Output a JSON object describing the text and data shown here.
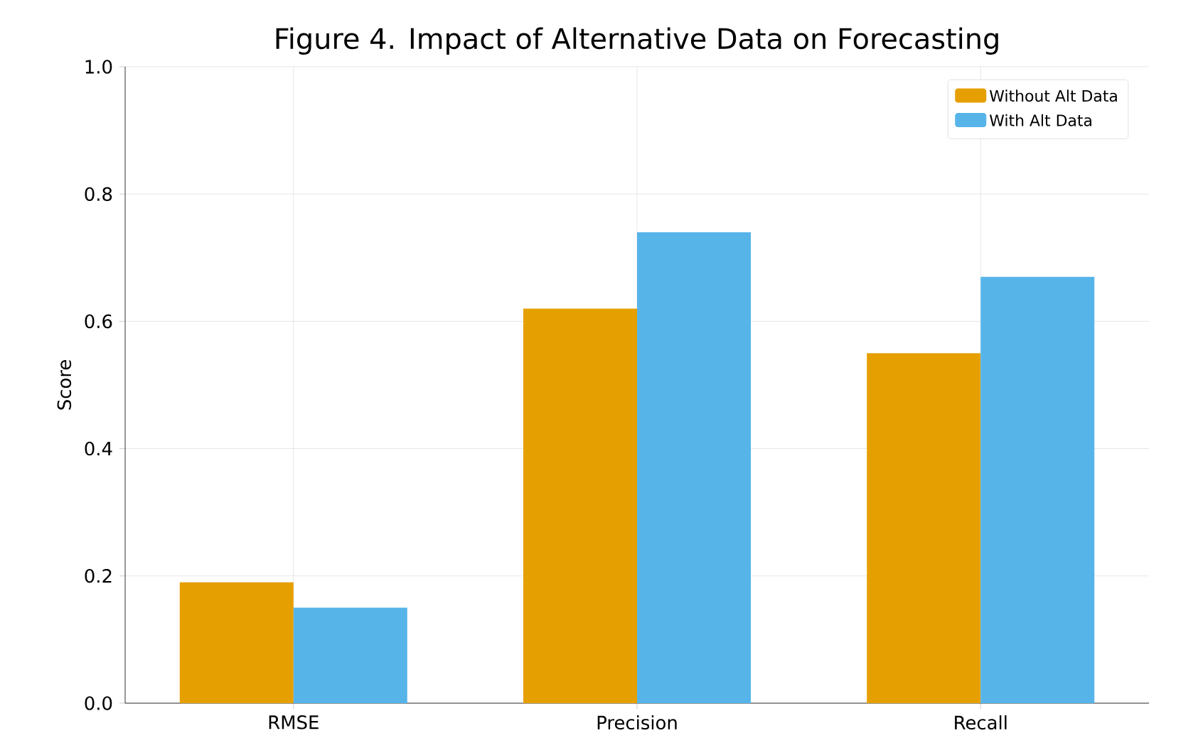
{
  "chart_data": {
    "type": "bar",
    "title": "Figure 4. Impact of Alternative Data on Forecasting",
    "ylabel": "Score",
    "categories": [
      "RMSE",
      "Precision",
      "Recall"
    ],
    "series": [
      {
        "name": "Without Alt Data",
        "color": "#e69f00",
        "values": [
          0.19,
          0.62,
          0.55
        ]
      },
      {
        "name": "With Alt Data",
        "color": "#56b4e9",
        "values": [
          0.15,
          0.74,
          0.67
        ]
      }
    ],
    "ylim": [
      0,
      1
    ],
    "yticks": [
      {
        "value": 0,
        "label": "0.0"
      },
      {
        "value": 0.2,
        "label": "0.2"
      },
      {
        "value": 0.4,
        "label": "0.4"
      },
      {
        "value": 0.6,
        "label": "0.6"
      },
      {
        "value": 0.8,
        "label": "0.8"
      },
      {
        "value": 1,
        "label": "1.0"
      }
    ],
    "grid": true,
    "legend": "top right"
  }
}
